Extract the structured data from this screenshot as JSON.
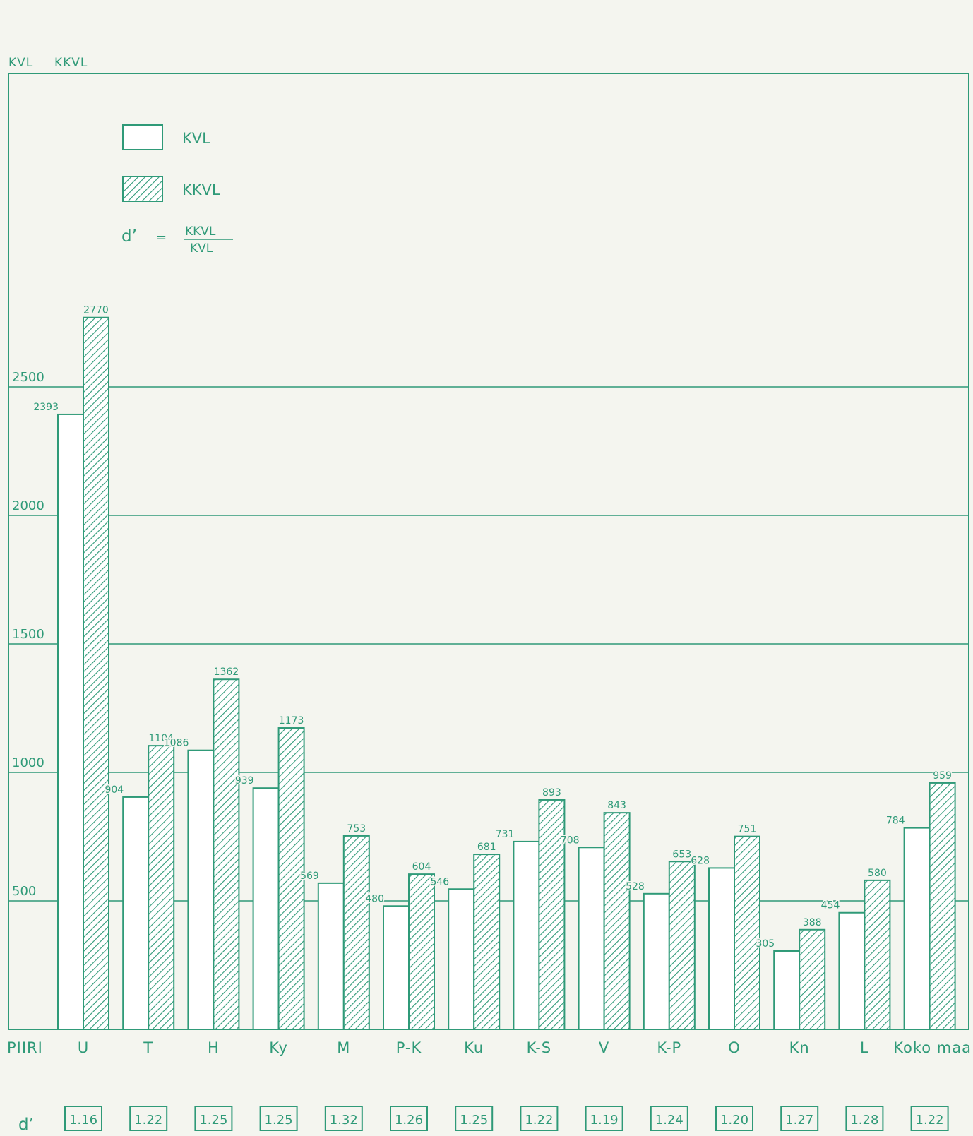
{
  "colors": {
    "ink": "#2f9a78",
    "paper": "#f4f5ef",
    "bar_fill": "#ffffff",
    "gridline": "#2f9a78"
  },
  "header": {
    "kvl_label": "KVL",
    "kkvl_label": "KKVL"
  },
  "legend": {
    "kvl": "KVL",
    "kkvl": "KKVL",
    "formula_symbol": "d’",
    "formula_equals": "=",
    "formula_numerator": "KKVL",
    "formula_denominator": "KVL"
  },
  "x_axis_title": "PIIRI",
  "d_row_label": "d’",
  "chart_data": {
    "type": "bar",
    "ylim": [
      0,
      3000
    ],
    "yticks": [
      500,
      1000,
      1500,
      2000,
      2500
    ],
    "grid": true,
    "legend_position": "top-left",
    "categories": [
      "U",
      "T",
      "H",
      "Ky",
      "M",
      "P-K",
      "Ku",
      "K-S",
      "V",
      "K-P",
      "O",
      "Kn",
      "L",
      "Koko maa"
    ],
    "series": [
      {
        "name": "KVL",
        "pattern": "plain",
        "values": [
          2393,
          904,
          1086,
          939,
          569,
          480,
          546,
          731,
          708,
          528,
          628,
          305,
          454,
          784
        ]
      },
      {
        "name": "KKVL",
        "pattern": "hatched",
        "values": [
          2770,
          1104,
          1362,
          1173,
          753,
          604,
          681,
          893,
          843,
          653,
          751,
          388,
          580,
          959
        ]
      }
    ],
    "d_ratio": [
      "1.16",
      "1.22",
      "1.25",
      "1.25",
      "1.32",
      "1.26",
      "1.25",
      "1.22",
      "1.19",
      "1.24",
      "1.20",
      "1.27",
      "1.28",
      "1.22"
    ]
  }
}
